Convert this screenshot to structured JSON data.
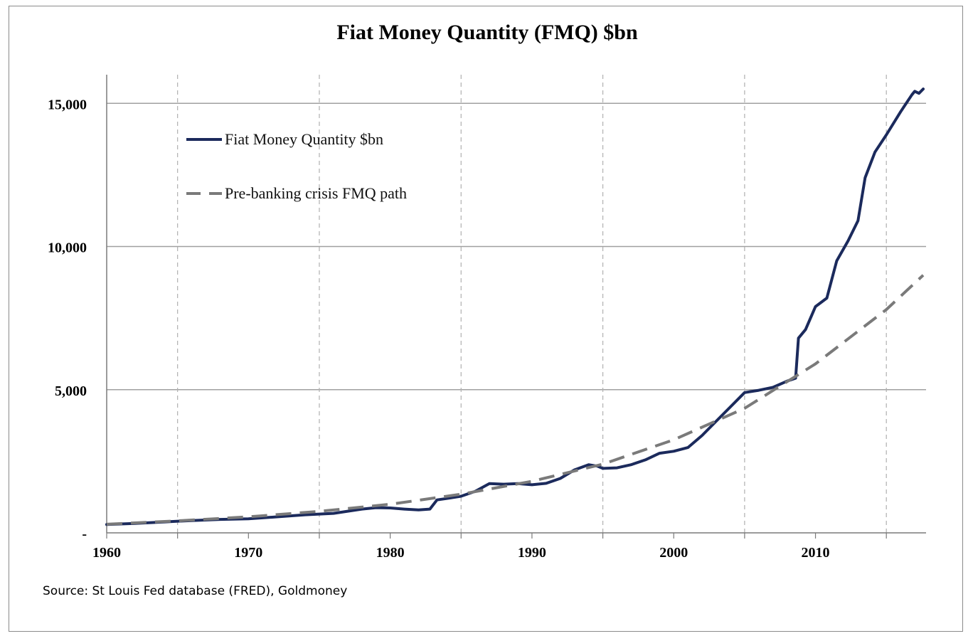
{
  "chart_data": {
    "type": "line",
    "title": "Fiat Money Quantity (FMQ)  $bn",
    "source": "Source: St Louis Fed  database (FRED), Goldmoney",
    "xlim": [
      1960,
      2017.8
    ],
    "ylim": [
      0,
      16000
    ],
    "x_ticks": [
      {
        "value": 1960,
        "label": "1960"
      },
      {
        "value": 1970,
        "label": "1970"
      },
      {
        "value": 1980,
        "label": "1980"
      },
      {
        "value": 1990,
        "label": "1990"
      },
      {
        "value": 2000,
        "label": "2000"
      },
      {
        "value": 2010,
        "label": "2010"
      }
    ],
    "x_minor_grid": [
      1965,
      1975,
      1985,
      1995,
      2005,
      2015
    ],
    "y_ticks": [
      {
        "value": 0,
        "label": "-"
      },
      {
        "value": 5000,
        "label": "5,000"
      },
      {
        "value": 10000,
        "label": "10,000"
      },
      {
        "value": 15000,
        "label": "15,000"
      }
    ],
    "legend_position": "top-left",
    "colors": {
      "fmq": "#1b2a5c",
      "path": "#7a7a7a",
      "grid": "#a8a8a8",
      "minor_grid": "#b0b0b0"
    },
    "series": [
      {
        "name": "Fiat Money Quantity $bn",
        "style": "solid",
        "color": "#1b2a5c",
        "points": [
          [
            1960,
            290
          ],
          [
            1962,
            330
          ],
          [
            1964,
            380
          ],
          [
            1966,
            430
          ],
          [
            1968,
            470
          ],
          [
            1970,
            490
          ],
          [
            1972,
            560
          ],
          [
            1974,
            630
          ],
          [
            1976,
            680
          ],
          [
            1978,
            830
          ],
          [
            1979,
            880
          ],
          [
            1980,
            870
          ],
          [
            1981,
            830
          ],
          [
            1982,
            800
          ],
          [
            1982.8,
            830
          ],
          [
            1983.3,
            1150
          ],
          [
            1984,
            1200
          ],
          [
            1985,
            1280
          ],
          [
            1986,
            1450
          ],
          [
            1987,
            1720
          ],
          [
            1988,
            1700
          ],
          [
            1989,
            1720
          ],
          [
            1990,
            1680
          ],
          [
            1991,
            1730
          ],
          [
            1992,
            1900
          ],
          [
            1993,
            2200
          ],
          [
            1994,
            2380
          ],
          [
            1994.6,
            2330
          ],
          [
            1995,
            2250
          ],
          [
            1996,
            2270
          ],
          [
            1997,
            2380
          ],
          [
            1998,
            2550
          ],
          [
            1999,
            2780
          ],
          [
            2000,
            2850
          ],
          [
            2001,
            2980
          ],
          [
            2002,
            3400
          ],
          [
            2003,
            3900
          ],
          [
            2004,
            4400
          ],
          [
            2005,
            4900
          ],
          [
            2006,
            4980
          ],
          [
            2007,
            5080
          ],
          [
            2008,
            5300
          ],
          [
            2008.6,
            5400
          ],
          [
            2008.8,
            6800
          ],
          [
            2009.3,
            7100
          ],
          [
            2010,
            7900
          ],
          [
            2010.8,
            8200
          ],
          [
            2011.5,
            9500
          ],
          [
            2012.3,
            10200
          ],
          [
            2013,
            10900
          ],
          [
            2013.5,
            12400
          ],
          [
            2014.2,
            13300
          ],
          [
            2015,
            13900
          ],
          [
            2016,
            14700
          ],
          [
            2016.8,
            15300
          ],
          [
            2017,
            15420
          ],
          [
            2017.3,
            15350
          ],
          [
            2017.6,
            15500
          ]
        ]
      },
      {
        "name": "Pre-banking crisis FMQ path",
        "style": "dashed",
        "color": "#7a7a7a",
        "points": [
          [
            1960,
            300
          ],
          [
            1965,
            420
          ],
          [
            1970,
            560
          ],
          [
            1975,
            750
          ],
          [
            1980,
            1000
          ],
          [
            1985,
            1350
          ],
          [
            1990,
            1800
          ],
          [
            1995,
            2400
          ],
          [
            2000,
            3250
          ],
          [
            2005,
            4350
          ],
          [
            2010,
            5900
          ],
          [
            2015,
            7800
          ],
          [
            2017.6,
            9000
          ]
        ]
      }
    ]
  }
}
